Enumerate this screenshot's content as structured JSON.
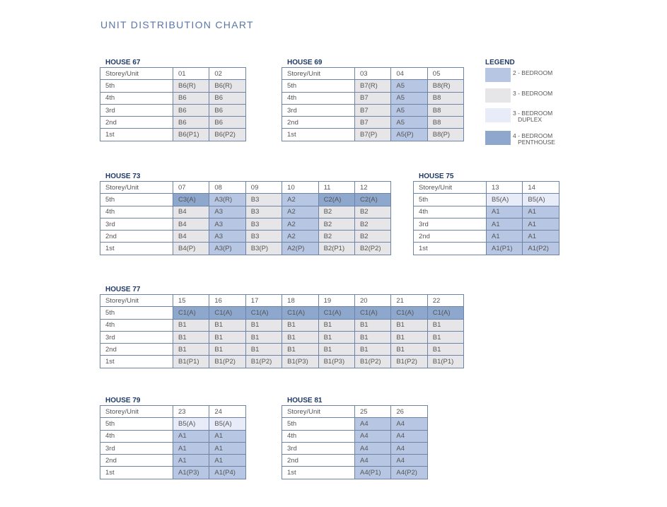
{
  "title": "UNIT DISTRIBUTION CHART",
  "colors": {
    "2br": "#b7c7e3",
    "3br": "#e6e6e9",
    "duplex": "#e7ecf8",
    "penthouse": "#8ea7cd",
    "heading": "#1f3a66"
  },
  "legend": {
    "title": "LEGEND",
    "items": [
      {
        "key": "2br",
        "label": "2 - BEDROOM"
      },
      {
        "key": "3br",
        "label": "3 - BEDROOM"
      },
      {
        "key": "duplex",
        "label": "3 - BEDROOM\n   DUPLEX"
      },
      {
        "key": "penthouse",
        "label": "4 - BEDROOM\n   PENTHOUSE"
      }
    ]
  },
  "houses": [
    {
      "name": "HOUSE 67",
      "header": "Storey/Unit",
      "units": [
        "01",
        "02"
      ],
      "rows": [
        {
          "storey": "5th",
          "cells": [
            [
              "B6(R)",
              "3br"
            ],
            [
              "B6(R)",
              "3br"
            ]
          ]
        },
        {
          "storey": "4th",
          "cells": [
            [
              "B6",
              "3br"
            ],
            [
              "B6",
              "3br"
            ]
          ]
        },
        {
          "storey": "3rd",
          "cells": [
            [
              "B6",
              "3br"
            ],
            [
              "B6",
              "3br"
            ]
          ]
        },
        {
          "storey": "2nd",
          "cells": [
            [
              "B6",
              "3br"
            ],
            [
              "B6",
              "3br"
            ]
          ]
        },
        {
          "storey": "1st",
          "cells": [
            [
              "B6(P1)",
              "3br"
            ],
            [
              "B6(P2)",
              "3br"
            ]
          ]
        }
      ]
    },
    {
      "name": "HOUSE 69",
      "header": "Storey/Unit",
      "units": [
        "03",
        "04",
        "05"
      ],
      "rows": [
        {
          "storey": "5th",
          "cells": [
            [
              "B7(R)",
              "3br"
            ],
            [
              "A5",
              "2br"
            ],
            [
              "B8(R)",
              "3br"
            ]
          ]
        },
        {
          "storey": "4th",
          "cells": [
            [
              "B7",
              "3br"
            ],
            [
              "A5",
              "2br"
            ],
            [
              "B8",
              "3br"
            ]
          ]
        },
        {
          "storey": "3rd",
          "cells": [
            [
              "B7",
              "3br"
            ],
            [
              "A5",
              "2br"
            ],
            [
              "B8",
              "3br"
            ]
          ]
        },
        {
          "storey": "2nd",
          "cells": [
            [
              "B7",
              "3br"
            ],
            [
              "A5",
              "2br"
            ],
            [
              "B8",
              "3br"
            ]
          ]
        },
        {
          "storey": "1st",
          "cells": [
            [
              "B7(P)",
              "3br"
            ],
            [
              "A5(P)",
              "2br"
            ],
            [
              "B8(P)",
              "3br"
            ]
          ]
        }
      ]
    },
    {
      "name": "HOUSE 73",
      "header": "Storey/Unit",
      "units": [
        "07",
        "08",
        "09",
        "10",
        "11",
        "12"
      ],
      "rows": [
        {
          "storey": "5th",
          "cells": [
            [
              "C3(A)",
              "penthouse"
            ],
            [
              "A3(R)",
              "2br"
            ],
            [
              "B3",
              "3br"
            ],
            [
              "A2",
              "2br"
            ],
            [
              "C2(A)",
              "penthouse"
            ],
            [
              "C2(A)",
              "penthouse"
            ]
          ]
        },
        {
          "storey": "4th",
          "cells": [
            [
              "B4",
              "3br"
            ],
            [
              "A3",
              "2br"
            ],
            [
              "B3",
              "3br"
            ],
            [
              "A2",
              "2br"
            ],
            [
              "B2",
              "3br"
            ],
            [
              "B2",
              "3br"
            ]
          ]
        },
        {
          "storey": "3rd",
          "cells": [
            [
              "B4",
              "3br"
            ],
            [
              "A3",
              "2br"
            ],
            [
              "B3",
              "3br"
            ],
            [
              "A2",
              "2br"
            ],
            [
              "B2",
              "3br"
            ],
            [
              "B2",
              "3br"
            ]
          ]
        },
        {
          "storey": "2nd",
          "cells": [
            [
              "B4",
              "3br"
            ],
            [
              "A3",
              "2br"
            ],
            [
              "B3",
              "3br"
            ],
            [
              "A2",
              "2br"
            ],
            [
              "B2",
              "3br"
            ],
            [
              "B2",
              "3br"
            ]
          ]
        },
        {
          "storey": "1st",
          "cells": [
            [
              "B4(P)",
              "3br"
            ],
            [
              "A3(P)",
              "2br"
            ],
            [
              "B3(P)",
              "3br"
            ],
            [
              "A2(P)",
              "2br"
            ],
            [
              "B2(P1)",
              "3br"
            ],
            [
              "B2(P2)",
              "3br"
            ]
          ]
        }
      ]
    },
    {
      "name": "HOUSE 75",
      "header": "Storey/Unit",
      "units": [
        "13",
        "14"
      ],
      "rows": [
        {
          "storey": "5th",
          "cells": [
            [
              "B5(A)",
              "duplex"
            ],
            [
              "B5(A)",
              "duplex"
            ]
          ]
        },
        {
          "storey": "4th",
          "cells": [
            [
              "A1",
              "2br"
            ],
            [
              "A1",
              "2br"
            ]
          ]
        },
        {
          "storey": "3rd",
          "cells": [
            [
              "A1",
              "2br"
            ],
            [
              "A1",
              "2br"
            ]
          ]
        },
        {
          "storey": "2nd",
          "cells": [
            [
              "A1",
              "2br"
            ],
            [
              "A1",
              "2br"
            ]
          ]
        },
        {
          "storey": "1st",
          "cells": [
            [
              "A1(P1)",
              "2br"
            ],
            [
              "A1(P2)",
              "2br"
            ]
          ]
        }
      ]
    },
    {
      "name": "HOUSE 77",
      "header": "Storey/Unit",
      "units": [
        "15",
        "16",
        "17",
        "18",
        "19",
        "20",
        "21",
        "22"
      ],
      "rows": [
        {
          "storey": "5th",
          "cells": [
            [
              "C1(A)",
              "penthouse"
            ],
            [
              "C1(A)",
              "penthouse"
            ],
            [
              "C1(A)",
              "penthouse"
            ],
            [
              "C1(A)",
              "penthouse"
            ],
            [
              "C1(A)",
              "penthouse"
            ],
            [
              "C1(A)",
              "penthouse"
            ],
            [
              "C1(A)",
              "penthouse"
            ],
            [
              "C1(A)",
              "penthouse"
            ]
          ]
        },
        {
          "storey": "4th",
          "cells": [
            [
              "B1",
              "3br"
            ],
            [
              "B1",
              "3br"
            ],
            [
              "B1",
              "3br"
            ],
            [
              "B1",
              "3br"
            ],
            [
              "B1",
              "3br"
            ],
            [
              "B1",
              "3br"
            ],
            [
              "B1",
              "3br"
            ],
            [
              "B1",
              "3br"
            ]
          ]
        },
        {
          "storey": "3rd",
          "cells": [
            [
              "B1",
              "3br"
            ],
            [
              "B1",
              "3br"
            ],
            [
              "B1",
              "3br"
            ],
            [
              "B1",
              "3br"
            ],
            [
              "B1",
              "3br"
            ],
            [
              "B1",
              "3br"
            ],
            [
              "B1",
              "3br"
            ],
            [
              "B1",
              "3br"
            ]
          ]
        },
        {
          "storey": "2nd",
          "cells": [
            [
              "B1",
              "3br"
            ],
            [
              "B1",
              "3br"
            ],
            [
              "B1",
              "3br"
            ],
            [
              "B1",
              "3br"
            ],
            [
              "B1",
              "3br"
            ],
            [
              "B1",
              "3br"
            ],
            [
              "B1",
              "3br"
            ],
            [
              "B1",
              "3br"
            ]
          ]
        },
        {
          "storey": "1st",
          "cells": [
            [
              "B1(P1)",
              "3br"
            ],
            [
              "B1(P2)",
              "3br"
            ],
            [
              "B1(P2)",
              "3br"
            ],
            [
              "B1(P3)",
              "3br"
            ],
            [
              "B1(P3)",
              "3br"
            ],
            [
              "B1(P2)",
              "3br"
            ],
            [
              "B1(P2)",
              "3br"
            ],
            [
              "B1(P1)",
              "3br"
            ]
          ]
        }
      ]
    },
    {
      "name": "HOUSE 79",
      "header": "Storey/Unit",
      "units": [
        "23",
        "24"
      ],
      "rows": [
        {
          "storey": "5th",
          "cells": [
            [
              "B5(A)",
              "duplex"
            ],
            [
              "B5(A)",
              "duplex"
            ]
          ]
        },
        {
          "storey": "4th",
          "cells": [
            [
              "A1",
              "2br"
            ],
            [
              "A1",
              "2br"
            ]
          ]
        },
        {
          "storey": "3rd",
          "cells": [
            [
              "A1",
              "2br"
            ],
            [
              "A1",
              "2br"
            ]
          ]
        },
        {
          "storey": "2nd",
          "cells": [
            [
              "A1",
              "2br"
            ],
            [
              "A1",
              "2br"
            ]
          ]
        },
        {
          "storey": "1st",
          "cells": [
            [
              "A1(P3)",
              "2br"
            ],
            [
              "A1(P4)",
              "2br"
            ]
          ]
        }
      ]
    },
    {
      "name": "HOUSE 81",
      "header": "Storey/Unit",
      "units": [
        "25",
        "26"
      ],
      "rows": [
        {
          "storey": "5th",
          "cells": [
            [
              "A4",
              "2br"
            ],
            [
              "A4",
              "2br"
            ]
          ]
        },
        {
          "storey": "4th",
          "cells": [
            [
              "A4",
              "2br"
            ],
            [
              "A4",
              "2br"
            ]
          ]
        },
        {
          "storey": "3rd",
          "cells": [
            [
              "A4",
              "2br"
            ],
            [
              "A4",
              "2br"
            ]
          ]
        },
        {
          "storey": "2nd",
          "cells": [
            [
              "A4",
              "2br"
            ],
            [
              "A4",
              "2br"
            ]
          ]
        },
        {
          "storey": "1st",
          "cells": [
            [
              "A4(P1)",
              "2br"
            ],
            [
              "A4(P2)",
              "2br"
            ]
          ]
        }
      ]
    }
  ]
}
